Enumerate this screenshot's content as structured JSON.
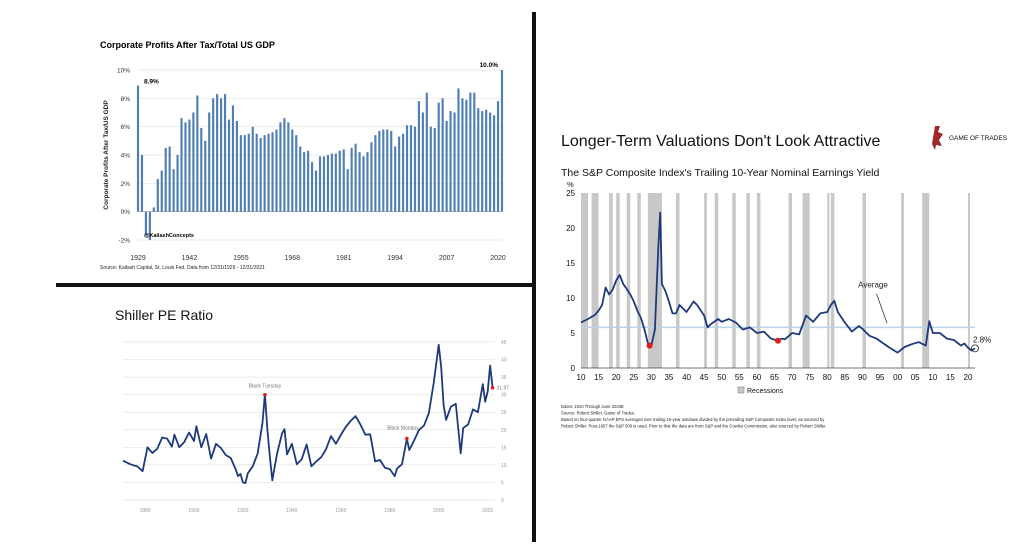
{
  "colors": {
    "bar": "#4f7fb3",
    "line": "#1f3a7a",
    "grid": "#e3e3e3",
    "recession": "#c8c8c8",
    "avg_line": "#b9d3ea",
    "marker": "#e01b1b",
    "divider": "#111111"
  },
  "chart_data": [
    {
      "type": "bar",
      "title": "Corporate Profits After Tax/Total US GDP",
      "ylabel": "Corporate Profits After Tax/US GDP",
      "ylim": [
        -2,
        10
      ],
      "yticks": [
        -2,
        0,
        2,
        4,
        6,
        8,
        10
      ],
      "ytick_labels": [
        "-2%",
        "0%",
        "2%",
        "4%",
        "6%",
        "8%",
        "10%"
      ],
      "xtick_labels": [
        "1929",
        "1942",
        "1955",
        "1968",
        "1981",
        "1994",
        "2007",
        "2020"
      ],
      "x_range": [
        1929,
        2021
      ],
      "years": [
        1929,
        1930,
        1931,
        1932,
        1933,
        1934,
        1935,
        1936,
        1937,
        1938,
        1939,
        1940,
        1941,
        1942,
        1943,
        1944,
        1945,
        1946,
        1947,
        1948,
        1949,
        1950,
        1951,
        1952,
        1953,
        1954,
        1955,
        1956,
        1957,
        1958,
        1959,
        1960,
        1961,
        1962,
        1963,
        1964,
        1965,
        1966,
        1967,
        1968,
        1969,
        1970,
        1971,
        1972,
        1973,
        1974,
        1975,
        1976,
        1977,
        1978,
        1979,
        1980,
        1981,
        1982,
        1983,
        1984,
        1985,
        1986,
        1987,
        1988,
        1989,
        1990,
        1991,
        1992,
        1993,
        1994,
        1995,
        1996,
        1997,
        1998,
        1999,
        2000,
        2001,
        2002,
        2003,
        2004,
        2005,
        2006,
        2007,
        2008,
        2009,
        2010,
        2011,
        2012,
        2013,
        2014,
        2015,
        2016,
        2017,
        2018,
        2019,
        2020,
        2021
      ],
      "values": [
        8.9,
        4.0,
        -1.7,
        -2.0,
        0.3,
        2.3,
        2.9,
        4.5,
        4.6,
        3.0,
        4.0,
        6.6,
        6.3,
        6.5,
        7.0,
        8.2,
        5.9,
        5.0,
        7.0,
        8.0,
        8.3,
        8.0,
        8.3,
        6.5,
        7.5,
        6.4,
        5.4,
        5.4,
        5.5,
        6.0,
        5.5,
        5.2,
        5.4,
        5.5,
        5.6,
        5.8,
        6.3,
        6.6,
        6.3,
        5.8,
        5.4,
        4.6,
        4.2,
        4.3,
        3.5,
        2.9,
        3.9,
        3.9,
        4.0,
        4.1,
        4.1,
        4.3,
        4.4,
        3.0,
        4.5,
        4.8,
        4.2,
        3.9,
        4.2,
        4.9,
        5.4,
        5.7,
        5.8,
        5.8,
        5.7,
        4.6,
        5.3,
        5.5,
        6.1,
        6.1,
        6.0,
        7.8,
        7.0,
        8.4,
        6.0,
        5.9,
        7.7,
        8.0,
        6.4,
        7.1,
        7.0,
        8.7,
        8.0,
        7.9,
        8.4,
        8.4,
        7.3,
        7.1,
        7.2,
        7.0,
        6.8,
        7.8,
        10.0
      ],
      "annotations": [
        {
          "label": "8.9%",
          "year": 1929,
          "value": 8.9
        },
        {
          "label": "10.0%",
          "year": 2021,
          "value": 10.0
        },
        {
          "label": "@KailashConcepts"
        }
      ],
      "source": "Source: Kailash Capital, St. Louis Fed, Data from 12/31/1929 - 12/31/2021"
    },
    {
      "type": "line",
      "title": "Shiller PE Ratio",
      "ylim": [
        0,
        45
      ],
      "yticks": [
        0,
        5,
        10,
        15,
        20,
        25,
        30,
        35,
        40,
        45
      ],
      "xtick_labels": [
        "1880",
        "1900",
        "1920",
        "1940",
        "1960",
        "1980",
        "2000",
        "2020"
      ],
      "xticks": [
        1880,
        1900,
        1920,
        1940,
        1960,
        1980,
        2000,
        2020
      ],
      "x_range": [
        1871,
        2023
      ],
      "annotations": [
        {
          "label": "Black Tuesday",
          "x": 1929,
          "y": 30
        },
        {
          "label": "Black Monday",
          "x": 1987,
          "y": 17.5
        },
        {
          "label": "31.97",
          "x": 2022,
          "y": 31.97
        }
      ],
      "series": [
        {
          "values": [
            [
              1871,
              11.2
            ],
            [
              1874,
              10.2
            ],
            [
              1877,
              9.5
            ],
            [
              1879,
              8.2
            ],
            [
              1881,
              15.0
            ],
            [
              1883,
              13.4
            ],
            [
              1885,
              14.6
            ],
            [
              1887,
              17.8
            ],
            [
              1889,
              17.5
            ],
            [
              1891,
              15.2
            ],
            [
              1892,
              18.6
            ],
            [
              1894,
              15.0
            ],
            [
              1896,
              16.5
            ],
            [
              1898,
              19.2
            ],
            [
              1900,
              16.8
            ],
            [
              1901,
              21.0
            ],
            [
              1903,
              15.0
            ],
            [
              1905,
              18.8
            ],
            [
              1907,
              11.8
            ],
            [
              1909,
              16.0
            ],
            [
              1911,
              14.8
            ],
            [
              1913,
              12.8
            ],
            [
              1915,
              12.0
            ],
            [
              1917,
              8.8
            ],
            [
              1918,
              6.8
            ],
            [
              1919,
              7.4
            ],
            [
              1920,
              5.0
            ],
            [
              1921,
              4.8
            ],
            [
              1922,
              7.6
            ],
            [
              1924,
              9.6
            ],
            [
              1926,
              13.2
            ],
            [
              1928,
              22.0
            ],
            [
              1929,
              30.2
            ],
            [
              1930,
              20.0
            ],
            [
              1931,
              12.5
            ],
            [
              1932,
              5.6
            ],
            [
              1933,
              9.5
            ],
            [
              1934,
              13.4
            ],
            [
              1936,
              19.0
            ],
            [
              1937,
              20.2
            ],
            [
              1938,
              13.0
            ],
            [
              1940,
              16.0
            ],
            [
              1942,
              10.2
            ],
            [
              1944,
              11.6
            ],
            [
              1946,
              15.8
            ],
            [
              1948,
              9.6
            ],
            [
              1950,
              11.0
            ],
            [
              1952,
              12.2
            ],
            [
              1954,
              14.5
            ],
            [
              1956,
              18.2
            ],
            [
              1958,
              16.0
            ],
            [
              1960,
              18.5
            ],
            [
              1962,
              20.8
            ],
            [
              1964,
              22.5
            ],
            [
              1966,
              23.9
            ],
            [
              1968,
              21.5
            ],
            [
              1970,
              18.6
            ],
            [
              1972,
              18.7
            ],
            [
              1974,
              11.0
            ],
            [
              1976,
              11.4
            ],
            [
              1978,
              9.2
            ],
            [
              1980,
              8.8
            ],
            [
              1982,
              6.8
            ],
            [
              1983,
              9.0
            ],
            [
              1985,
              10.2
            ],
            [
              1987,
              17.5
            ],
            [
              1988,
              14.2
            ],
            [
              1990,
              17.0
            ],
            [
              1992,
              20.0
            ],
            [
              1994,
              21.2
            ],
            [
              1996,
              24.8
            ],
            [
              1998,
              33.5
            ],
            [
              2000,
              44.2
            ],
            [
              2001,
              37.8
            ],
            [
              2002,
              27.0
            ],
            [
              2003,
              22.8
            ],
            [
              2005,
              26.6
            ],
            [
              2007,
              27.4
            ],
            [
              2009,
              13.3
            ],
            [
              2010,
              20.5
            ],
            [
              2012,
              21.5
            ],
            [
              2014,
              25.8
            ],
            [
              2016,
              25.0
            ],
            [
              2018,
              33.0
            ],
            [
              2019,
              28.0
            ],
            [
              2020,
              30.9
            ],
            [
              2021,
              38.3
            ],
            [
              2022,
              31.97
            ]
          ]
        }
      ]
    },
    {
      "type": "line",
      "title": "Longer-Term Valuations Don't Look Attractive",
      "subtitle": "The S&P Composite Index's Trailing 10-Year Nominal Earnings Yield",
      "ylabel": "%",
      "ylim": [
        0,
        25
      ],
      "yticks": [
        0,
        5,
        10,
        15,
        20,
        25
      ],
      "xtick_labels": [
        "10",
        "15",
        "20",
        "25",
        "30",
        "35",
        "40",
        "45",
        "50",
        "55",
        "60",
        "65",
        "70",
        "75",
        "80",
        "85",
        "90",
        "95",
        "00",
        "05",
        "10",
        "15",
        "20"
      ],
      "x_range": [
        1910,
        2022
      ],
      "average": 5.8,
      "average_label": "Average",
      "end_label": "2.8%",
      "legend": "Recessions",
      "recessions": [
        [
          1910,
          1912
        ],
        [
          1913,
          1915
        ],
        [
          1918,
          1919
        ],
        [
          1920,
          1921
        ],
        [
          1923,
          1924
        ],
        [
          1926,
          1927
        ],
        [
          1929,
          1933
        ],
        [
          1937,
          1938
        ],
        [
          1945,
          1945.8
        ],
        [
          1948,
          1949
        ],
        [
          1953,
          1954
        ],
        [
          1957,
          1958
        ],
        [
          1960,
          1961
        ],
        [
          1969,
          1970
        ],
        [
          1973,
          1975
        ],
        [
          1980,
          1980.6
        ],
        [
          1981,
          1982
        ],
        [
          1990,
          1991
        ],
        [
          2001,
          2001.8
        ],
        [
          2007,
          2009
        ],
        [
          2020,
          2020.4
        ]
      ],
      "markers": [
        {
          "x": 1929.5,
          "y": 3.2
        },
        {
          "x": 1966,
          "y": 3.9
        }
      ],
      "series": [
        {
          "values": [
            [
              1910,
              6.5
            ],
            [
              1912,
              7.0
            ],
            [
              1914,
              7.6
            ],
            [
              1915,
              8.2
            ],
            [
              1916,
              9.0
            ],
            [
              1917,
              11.5
            ],
            [
              1918,
              10.5
            ],
            [
              1919,
              11.2
            ],
            [
              1920,
              12.5
            ],
            [
              1921,
              13.3
            ],
            [
              1922,
              12.0
            ],
            [
              1923,
              11.3
            ],
            [
              1924,
              10.5
            ],
            [
              1925,
              9.5
            ],
            [
              1926,
              8.2
            ],
            [
              1927,
              7.2
            ],
            [
              1928,
              5.6
            ],
            [
              1929,
              3.6
            ],
            [
              1930,
              3.2
            ],
            [
              1931,
              5.5
            ],
            [
              1932,
              17.5
            ],
            [
              1932.5,
              22.2
            ],
            [
              1933,
              12.0
            ],
            [
              1934,
              11.0
            ],
            [
              1935,
              9.5
            ],
            [
              1936,
              7.8
            ],
            [
              1937,
              7.8
            ],
            [
              1938,
              9.0
            ],
            [
              1940,
              8.0
            ],
            [
              1942,
              9.5
            ],
            [
              1943,
              9.0
            ],
            [
              1945,
              7.5
            ],
            [
              1946,
              5.8
            ],
            [
              1947,
              6.3
            ],
            [
              1949,
              7.0
            ],
            [
              1950,
              6.6
            ],
            [
              1952,
              7.0
            ],
            [
              1954,
              6.5
            ],
            [
              1956,
              5.5
            ],
            [
              1958,
              5.8
            ],
            [
              1960,
              5.0
            ],
            [
              1962,
              5.2
            ],
            [
              1964,
              4.2
            ],
            [
              1966,
              3.9
            ],
            [
              1967,
              4.2
            ],
            [
              1968,
              4.1
            ],
            [
              1970,
              5.0
            ],
            [
              1972,
              4.8
            ],
            [
              1974,
              7.5
            ],
            [
              1976,
              6.6
            ],
            [
              1978,
              7.8
            ],
            [
              1980,
              8.0
            ],
            [
              1981,
              9.0
            ],
            [
              1982,
              9.6
            ],
            [
              1983,
              8.0
            ],
            [
              1985,
              6.5
            ],
            [
              1987,
              5.2
            ],
            [
              1989,
              6.0
            ],
            [
              1990,
              5.6
            ],
            [
              1992,
              4.6
            ],
            [
              1994,
              4.2
            ],
            [
              1996,
              3.5
            ],
            [
              1998,
              2.8
            ],
            [
              2000,
              2.2
            ],
            [
              2002,
              3.0
            ],
            [
              2004,
              3.4
            ],
            [
              2006,
              3.7
            ],
            [
              2008,
              3.2
            ],
            [
              2009,
              6.7
            ],
            [
              2010,
              5.0
            ],
            [
              2012,
              5.0
            ],
            [
              2014,
              4.2
            ],
            [
              2016,
              4.0
            ],
            [
              2018,
              3.2
            ],
            [
              2019,
              3.5
            ],
            [
              2020,
              2.9
            ],
            [
              2021,
              2.5
            ],
            [
              2022,
              2.8
            ]
          ]
        }
      ],
      "notes": [
        "Dates: 1910 Through June 2023E",
        "Source: Robert Shiller, Game of Trades.",
        "Based on four-quarter GAAP EPS averaged over trailing 10-year windows divided by the prevailing S&P Composite Index level, as sourced by",
        "Robert Shiller. Post-1957 the S&P 500 is used. Prior to that the data are from S&P and the Cowles Commission, also sourced by Robert Shiller."
      ],
      "logo_text": "GAME OF TRADES"
    }
  ]
}
